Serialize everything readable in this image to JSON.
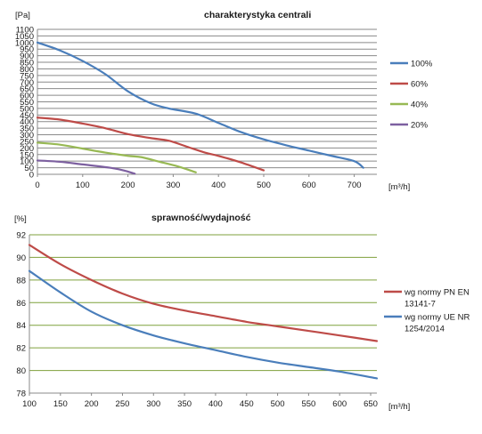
{
  "chart_data": [
    {
      "type": "line",
      "title": "charakterystyka centrali",
      "ylabel": "[Pa]",
      "xlabel": "[m³/h]",
      "xlim": [
        0,
        750
      ],
      "ylim": [
        0,
        1100
      ],
      "xticks": [
        0,
        100,
        200,
        300,
        400,
        500,
        600,
        700
      ],
      "yticks": [
        0,
        50,
        100,
        150,
        200,
        250,
        300,
        350,
        400,
        450,
        500,
        550,
        600,
        650,
        700,
        750,
        800,
        850,
        900,
        950,
        1000,
        1050,
        1100
      ],
      "grid": "horizontal",
      "legend_position": "right",
      "series": [
        {
          "name": "100%",
          "color": "#4a7ebb",
          "points": [
            [
              0,
              1000
            ],
            [
              50,
              940
            ],
            [
              100,
              860
            ],
            [
              150,
              760
            ],
            [
              200,
              630
            ],
            [
              250,
              540
            ],
            [
              290,
              500
            ],
            [
              350,
              460
            ],
            [
              400,
              390
            ],
            [
              450,
              320
            ],
            [
              500,
              265
            ],
            [
              550,
              220
            ],
            [
              600,
              180
            ],
            [
              650,
              140
            ],
            [
              700,
              100
            ],
            [
              720,
              50
            ]
          ]
        },
        {
          "name": "60%",
          "color": "#be4b48",
          "points": [
            [
              0,
              430
            ],
            [
              50,
              415
            ],
            [
              100,
              385
            ],
            [
              150,
              350
            ],
            [
              200,
              305
            ],
            [
              250,
              275
            ],
            [
              290,
              255
            ],
            [
              330,
              210
            ],
            [
              370,
              165
            ],
            [
              400,
              140
            ],
            [
              450,
              90
            ],
            [
              500,
              30
            ]
          ]
        },
        {
          "name": "40%",
          "color": "#98b954",
          "points": [
            [
              0,
              240
            ],
            [
              50,
              225
            ],
            [
              100,
              195
            ],
            [
              150,
              165
            ],
            [
              200,
              140
            ],
            [
              230,
              130
            ],
            [
              270,
              95
            ],
            [
              310,
              60
            ],
            [
              350,
              15
            ]
          ]
        },
        {
          "name": "20%",
          "color": "#7d60a0",
          "points": [
            [
              0,
              105
            ],
            [
              50,
              95
            ],
            [
              100,
              75
            ],
            [
              160,
              50
            ],
            [
              190,
              30
            ],
            [
              215,
              5
            ]
          ]
        }
      ]
    },
    {
      "type": "line",
      "title": "sprawność/wydajność",
      "ylabel": "[%]",
      "xlabel": "[m³/h]",
      "xlim": [
        100,
        660
      ],
      "ylim": [
        78,
        92
      ],
      "xticks": [
        100,
        150,
        200,
        250,
        300,
        350,
        400,
        450,
        500,
        550,
        600,
        650
      ],
      "yticks": [
        78,
        80,
        82,
        84,
        86,
        88,
        90,
        92
      ],
      "grid": "horizontal",
      "legend_position": "right",
      "series": [
        {
          "name": "wg normy PN EN 13141-7",
          "name_lines": [
            "wg normy PN EN",
            "13141-7"
          ],
          "color": "#be4b48",
          "points": [
            [
              100,
              91.1
            ],
            [
              150,
              89.4
            ],
            [
              200,
              88.0
            ],
            [
              250,
              86.8
            ],
            [
              300,
              85.9
            ],
            [
              350,
              85.3
            ],
            [
              400,
              84.8
            ],
            [
              450,
              84.3
            ],
            [
              500,
              83.9
            ],
            [
              550,
              83.5
            ],
            [
              600,
              83.1
            ],
            [
              660,
              82.6
            ]
          ]
        },
        {
          "name": "wg normy UE NR 1254/2014",
          "name_lines": [
            "wg normy UE NR",
            "1254/2014"
          ],
          "color": "#4a7ebb",
          "points": [
            [
              100,
              88.8
            ],
            [
              150,
              86.9
            ],
            [
              200,
              85.2
            ],
            [
              250,
              84.0
            ],
            [
              300,
              83.1
            ],
            [
              350,
              82.4
            ],
            [
              400,
              81.8
            ],
            [
              450,
              81.2
            ],
            [
              500,
              80.7
            ],
            [
              550,
              80.3
            ],
            [
              600,
              79.9
            ],
            [
              660,
              79.3
            ]
          ]
        }
      ]
    }
  ]
}
